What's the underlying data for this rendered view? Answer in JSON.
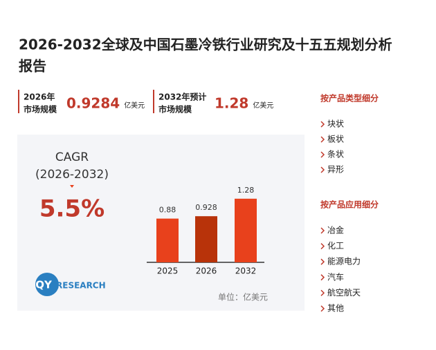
{
  "header": {
    "title_lines": [
      "2026-2032全球及中国石墨冷铁行业研究及十五五规划分析",
      "报告"
    ]
  },
  "stats": [
    {
      "label": [
        "2026年",
        "市场规模"
      ],
      "value": "0.9284",
      "unit": "亿美元"
    },
    {
      "label": [
        "2032年预计",
        "市场规模"
      ],
      "value": "1.28",
      "unit": "亿美元"
    }
  ],
  "cagr": {
    "label": "CAGR",
    "period": "(2026-2032)",
    "value": "5.5%"
  },
  "chart_data": {
    "type": "bar",
    "categories": [
      "2025",
      "2026",
      "2032"
    ],
    "values": [
      0.88,
      0.928,
      1.28
    ],
    "colors": [
      "#e8411c",
      "#b8330a",
      "#e8411c"
    ],
    "unit": "单位：亿美元"
  },
  "segments": [
    {
      "title": "按产品类型细分",
      "items": [
        "块状",
        "板状",
        "条状",
        "异形"
      ]
    },
    {
      "title": "按产品应用细分",
      "items": [
        "冶金",
        "化工",
        "能源电力",
        "汽车",
        "航空航天",
        "其他"
      ]
    }
  ],
  "logo": {
    "mark": "QY",
    "text": "RESEARCH"
  }
}
